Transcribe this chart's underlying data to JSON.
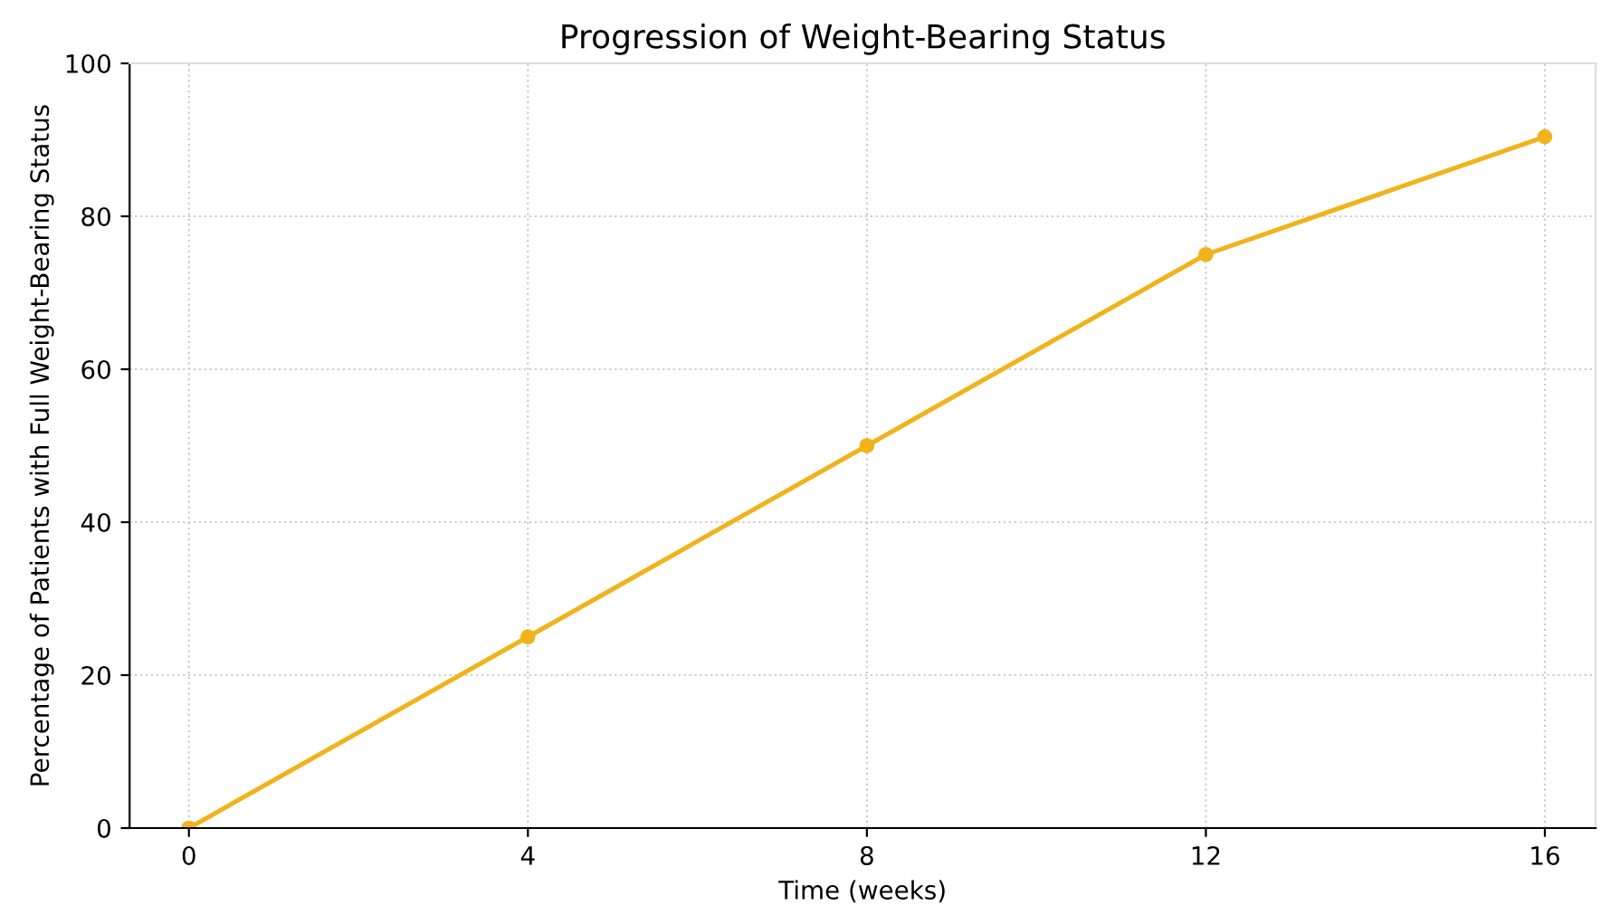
{
  "chart_data": {
    "type": "line",
    "title": "Progression of Weight-Bearing Status",
    "xlabel": "Time (weeks)",
    "ylabel": "Percentage of Patients with Full Weight-Bearing Status",
    "x": [
      0,
      4,
      8,
      12,
      16
    ],
    "series": [
      {
        "color": "#f0b31a",
        "values": [
          0,
          25,
          50,
          75,
          90.4
        ]
      }
    ],
    "xlim": [
      -0.7,
      16.6
    ],
    "ylim": [
      0,
      100
    ],
    "xticks": [
      0,
      4,
      8,
      12,
      16
    ],
    "yticks": [
      0,
      20,
      40,
      60,
      80,
      100
    ],
    "grid": true,
    "marker": "circle",
    "line_style": "solid",
    "legend": false
  }
}
